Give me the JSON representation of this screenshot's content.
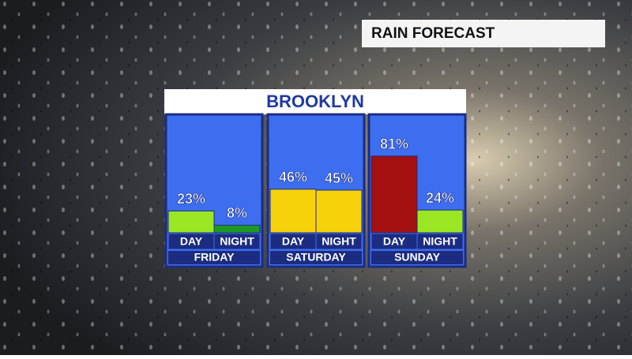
{
  "chart_data": {
    "type": "bar",
    "header": "RAIN FORECAST",
    "title": "BROOKLYN",
    "groups": [
      "FRIDAY",
      "SATURDAY",
      "SUNDAY"
    ],
    "categories": [
      "DAY",
      "NIGHT",
      "DAY",
      "NIGHT",
      "DAY",
      "NIGHT"
    ],
    "values": [
      23,
      8,
      46,
      45,
      81,
      24
    ],
    "value_labels": [
      "23%",
      "8%",
      "46%",
      "45%",
      "81%",
      "24%"
    ],
    "colors": [
      "#9be622",
      "#1e9a24",
      "#f7d20a",
      "#f7d20a",
      "#a3100f",
      "#9be622"
    ]
  }
}
